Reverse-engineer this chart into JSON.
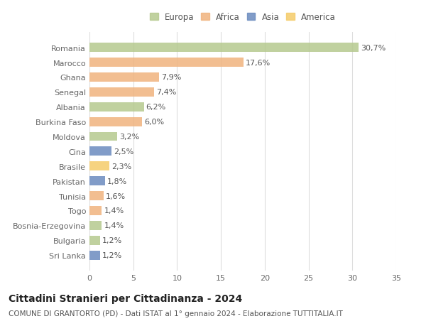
{
  "countries": [
    "Romania",
    "Marocco",
    "Ghana",
    "Senegal",
    "Albania",
    "Burkina Faso",
    "Moldova",
    "Cina",
    "Brasile",
    "Pakistan",
    "Tunisia",
    "Togo",
    "Bosnia-Erzegovina",
    "Bulgaria",
    "Sri Lanka"
  ],
  "values": [
    30.7,
    17.6,
    7.9,
    7.4,
    6.2,
    6.0,
    3.2,
    2.5,
    2.3,
    1.8,
    1.6,
    1.4,
    1.4,
    1.2,
    1.2
  ],
  "labels": [
    "30,7%",
    "17,6%",
    "7,9%",
    "7,4%",
    "6,2%",
    "6,0%",
    "3,2%",
    "2,5%",
    "2,3%",
    "1,8%",
    "1,6%",
    "1,4%",
    "1,4%",
    "1,2%",
    "1,2%"
  ],
  "colors": [
    "#b5c98e",
    "#f0b37e",
    "#f0b37e",
    "#f0b37e",
    "#b5c98e",
    "#f0b37e",
    "#b5c98e",
    "#6b8bbf",
    "#f5cc6a",
    "#6b8bbf",
    "#f0b37e",
    "#f0b37e",
    "#b5c98e",
    "#b5c98e",
    "#6b8bbf"
  ],
  "legend_labels": [
    "Europa",
    "Africa",
    "Asia",
    "America"
  ],
  "legend_colors": [
    "#b5c98e",
    "#f0b37e",
    "#6b8bbf",
    "#f5cc6a"
  ],
  "xlim": [
    0,
    35
  ],
  "xticks": [
    0,
    5,
    10,
    15,
    20,
    25,
    30,
    35
  ],
  "title": "Cittadini Stranieri per Cittadinanza - 2024",
  "subtitle": "COMUNE DI GRANTORTO (PD) - Dati ISTAT al 1° gennaio 2024 - Elaborazione TUTTITALIA.IT",
  "bg_color": "#ffffff",
  "grid_color": "#dddddd",
  "bar_height": 0.62,
  "label_fontsize": 8.0,
  "tick_fontsize": 8.0,
  "title_fontsize": 10.0,
  "subtitle_fontsize": 7.5,
  "legend_fontsize": 8.5
}
